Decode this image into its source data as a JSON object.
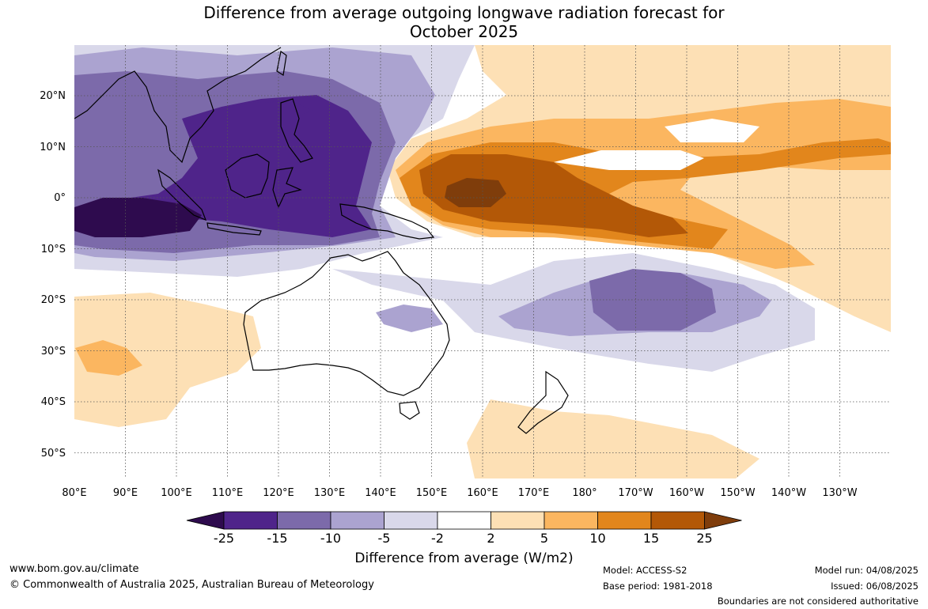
{
  "title_line1": "Difference from average outgoing longwave radiation forecast for",
  "title_line2": "October 2025",
  "lat_labels": [
    "20°N",
    "10°N",
    "0°",
    "10°S",
    "20°S",
    "30°S",
    "40°S",
    "50°S"
  ],
  "lon_labels": [
    "80°E",
    "90°E",
    "100°E",
    "110°E",
    "120°E",
    "130°E",
    "140°E",
    "150°E",
    "160°E",
    "170°E",
    "180°",
    "170°W",
    "160°W",
    "150°W",
    "140°W",
    "130°W"
  ],
  "colorbar": {
    "title": "Difference from average (W/m2)",
    "labels": [
      "-25",
      "-15",
      "-10",
      "-5",
      "-2",
      "2",
      "5",
      "10",
      "15",
      "25"
    ],
    "colors": [
      "#2e0b4e",
      "#4f248a",
      "#7c6aaa",
      "#aba3d0",
      "#d9d8ea",
      "#ffffff",
      "#fde0b5",
      "#fbb660",
      "#e2861c",
      "#b35807",
      "#7f3d0b"
    ]
  },
  "footer": {
    "website": "www.bom.gov.au/climate",
    "copyright": "© Commonwealth of Australia 2025, Australian Bureau of Meteorology",
    "model": "Model: ACCESS-S2",
    "base_period": "Base period: 1981-2018",
    "model_run": "Model run: 04/08/2025",
    "issued": "Issued: 06/08/2025",
    "disclaimer": "Boundaries are not considered authoritative"
  }
}
